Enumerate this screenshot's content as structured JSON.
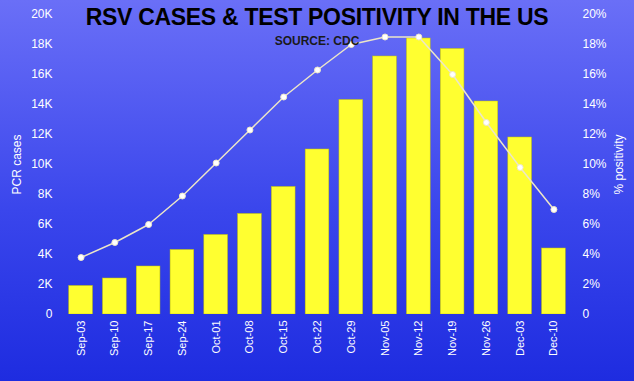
{
  "chart_data": {
    "type": "bar",
    "title": "RSV CASES & TEST POSITIVITY IN THE US",
    "subtitle": "SOURCE: CDC",
    "y_label": "PCR cases",
    "y2_label": "% positivity",
    "categories": [
      "Sep-03",
      "Sep-10",
      "Sep-17",
      "Sep-24",
      "Oct-01",
      "Oct-08",
      "Oct-15",
      "Oct-22",
      "Oct-29",
      "Nov-05",
      "Nov-12",
      "Nov-19",
      "Nov-26",
      "Dec-03",
      "Dec-10"
    ],
    "series": [
      {
        "name": "PCR cases",
        "type": "bar",
        "color": "#ffff30",
        "values": [
          1900,
          2400,
          3200,
          4300,
          5300,
          6700,
          8500,
          11000,
          14300,
          17200,
          18400,
          17700,
          14200,
          11800,
          4400
        ]
      },
      {
        "name": "% positivity",
        "type": "line",
        "axis": "y2",
        "color": "#ece6c8",
        "marker": "circle",
        "values": [
          3.8,
          4.8,
          6.0,
          7.9,
          10.1,
          12.3,
          14.5,
          16.3,
          18.0,
          18.5,
          18.5,
          16.0,
          12.8,
          9.8,
          7.0
        ]
      }
    ],
    "ylim": [
      0,
      20000
    ],
    "yticks": [
      0,
      {
        "value": 2000,
        "label": "2K"
      },
      {
        "value": 4000,
        "label": "4K"
      },
      {
        "value": 6000,
        "label": "6K"
      },
      {
        "value": 8000,
        "label": "8K"
      },
      {
        "value": 10000,
        "label": "10K"
      },
      {
        "value": 12000,
        "label": "12K"
      },
      {
        "value": 14000,
        "label": "14K"
      },
      {
        "value": 16000,
        "label": "16K"
      },
      {
        "value": 18000,
        "label": "18K"
      },
      {
        "value": 20000,
        "label": "20K"
      }
    ],
    "y2lim": [
      0,
      20
    ],
    "y2ticks": [
      0,
      {
        "value": 2,
        "label": "2%"
      },
      {
        "value": 4,
        "label": "4%"
      },
      {
        "value": 6,
        "label": "6%"
      },
      {
        "value": 8,
        "label": "8%"
      },
      {
        "value": 10,
        "label": "10%"
      },
      {
        "value": 12,
        "label": "12%"
      },
      {
        "value": 14,
        "label": "14%"
      },
      {
        "value": 16,
        "label": "16%"
      },
      {
        "value": 18,
        "label": "18%"
      },
      {
        "value": 20,
        "label": "20%"
      }
    ],
    "grid": false
  }
}
